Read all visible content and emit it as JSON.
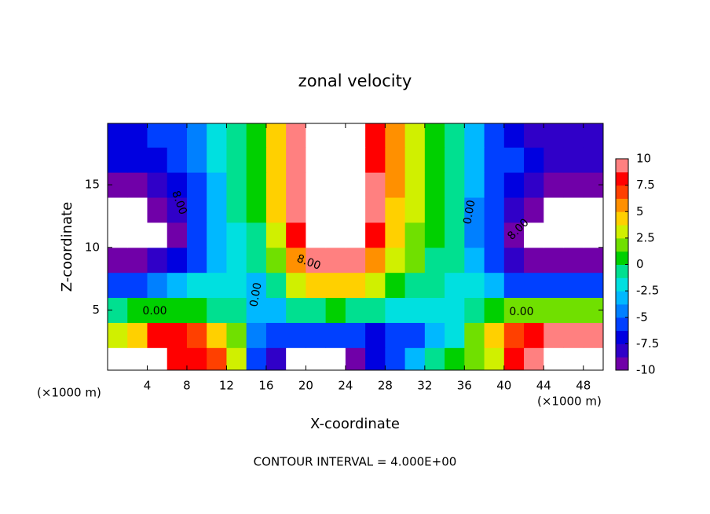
{
  "chart_data": {
    "type": "contour",
    "title": "zonal velocity",
    "x_label": "X-coordinate",
    "y_label": "Z-coordinate",
    "x_unit": "(×1000 m)",
    "y_unit": "(×1000 m)",
    "footer": "CONTOUR INTERVAL = 4.000E+00",
    "x": [
      1,
      3,
      5,
      7,
      9,
      11,
      13,
      15,
      17,
      19,
      21,
      23,
      25,
      27,
      29,
      31,
      33,
      35,
      37,
      39,
      41,
      43,
      45,
      47,
      49
    ],
    "y": [
      1,
      3,
      5,
      7,
      9,
      11,
      13,
      15,
      17,
      19
    ],
    "z": [
      [
        11,
        11,
        11,
        8,
        8,
        7,
        3,
        -5,
        -8,
        -11,
        -11,
        -11,
        -9,
        -7,
        -5,
        -3,
        0,
        1,
        2,
        3,
        8,
        9,
        11,
        11,
        11
      ],
      [
        3,
        4,
        8,
        8,
        7,
        5,
        2,
        -4,
        -6,
        -5,
        -5,
        -6,
        -6,
        -7,
        -6,
        -5,
        -3,
        -2,
        2,
        4,
        7,
        8,
        9,
        10,
        10
      ],
      [
        0,
        1,
        1,
        1,
        1,
        0,
        -1,
        -3,
        -3,
        0,
        0,
        1,
        0,
        0,
        -2,
        -2,
        -2,
        -2,
        0,
        1,
        2,
        2,
        2,
        2,
        2
      ],
      [
        -6,
        -5,
        -4,
        -3,
        -2,
        -2,
        -2,
        -3,
        -1,
        3,
        5,
        5,
        4,
        3,
        1,
        0,
        -1,
        -2,
        -2,
        -3,
        -5,
        -6,
        -6,
        -6,
        -6
      ],
      [
        -9,
        -9,
        -8,
        -7,
        -5,
        -3,
        -2,
        -1,
        2,
        6,
        9,
        10,
        9,
        6,
        3,
        2,
        0,
        -1,
        -3,
        -5,
        -8,
        -10,
        -10,
        -9,
        -9
      ],
      [
        -11,
        -11,
        -11,
        -9,
        -6,
        -3,
        -2,
        0,
        3,
        8,
        11,
        12,
        11,
        8,
        4,
        2,
        1,
        -1,
        -4,
        -6,
        -9,
        -11,
        -11,
        -11,
        -11
      ],
      [
        -11,
        -11,
        -10,
        -8,
        -6,
        -3,
        -1,
        1,
        4,
        9,
        12,
        12,
        12,
        9,
        5,
        3,
        1,
        -1,
        -4,
        -5,
        -8,
        -10,
        -11,
        -11,
        -11
      ],
      [
        -9,
        -9,
        -8,
        -7,
        -5,
        -3,
        -1,
        1,
        4,
        9,
        12,
        12,
        12,
        9,
        6,
        3,
        1,
        -1,
        -3,
        -5,
        -7,
        -8,
        -9,
        -9,
        -9
      ],
      [
        -7,
        -7,
        -7,
        -6,
        -4,
        -2,
        -1,
        1,
        5,
        9,
        12,
        12,
        11,
        8,
        6,
        3,
        1,
        -1,
        -3,
        -5,
        -6,
        -7,
        -8,
        -8,
        -8
      ],
      [
        -7,
        -7,
        -6,
        -5,
        -4,
        -2,
        -1,
        1,
        5,
        9,
        11,
        12,
        11,
        8,
        6,
        3,
        1,
        -1,
        -3,
        -5,
        -7,
        -8,
        -8,
        -8,
        -8
      ]
    ],
    "xlim": [
      0,
      50
    ],
    "ylim": [
      0.2,
      19.9
    ],
    "xticks": [
      4,
      8,
      12,
      16,
      20,
      24,
      28,
      32,
      36,
      40,
      44,
      48
    ],
    "yticks": [
      5,
      10,
      15
    ],
    "color_levels": [
      -10,
      -8.75,
      -7.5,
      -6.25,
      -5,
      -3.75,
      -2.5,
      -1.25,
      0,
      1.25,
      2.5,
      3.75,
      5,
      6.25,
      7.5,
      8.75,
      10
    ],
    "colors": [
      "#7000a8",
      "#3000c8",
      "#0000e0",
      "#0040ff",
      "#0080ff",
      "#00b8ff",
      "#00e0e0",
      "#00e090",
      "#00d000",
      "#70e000",
      "#d0f000",
      "#ffd000",
      "#ff9000",
      "#ff4000",
      "#ff0000",
      "#ff8080"
    ],
    "out_of_range_color": "#ffffff",
    "colorbar_ticks": [
      10,
      7.5,
      5,
      2.5,
      0,
      -2.5,
      -5,
      -7.5,
      -10
    ],
    "contour_labels": [
      "8.00",
      "8.00",
      "0.00",
      "0.00",
      "0.00",
      "8.00",
      "0.00"
    ]
  }
}
